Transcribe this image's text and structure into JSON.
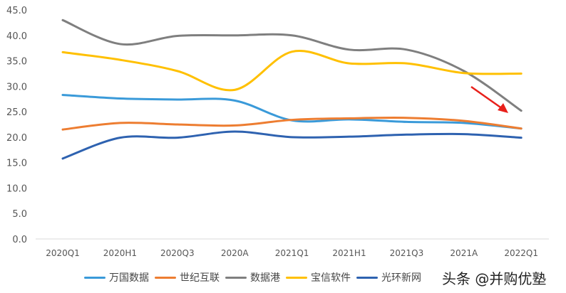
{
  "chart_data": {
    "type": "line",
    "categories": [
      "2020Q1",
      "2020H1",
      "2020Q3",
      "2020A",
      "2021Q1",
      "2021H1",
      "2021Q3",
      "2021A",
      "2022Q1"
    ],
    "ylim": [
      0,
      45
    ],
    "yticks": [
      "0.0",
      "5.0",
      "10.0",
      "15.0",
      "20.0",
      "25.0",
      "30.0",
      "35.0",
      "40.0",
      "45.0"
    ],
    "grid": false,
    "legend_position": "bottom",
    "smooth": true,
    "series": [
      {
        "name": "万国数据",
        "color": "#3a9ad9",
        "values": [
          28.3,
          27.6,
          27.4,
          27.2,
          23.3,
          23.5,
          23.0,
          22.8,
          21.7
        ]
      },
      {
        "name": "世纪互联",
        "color": "#ed7d31",
        "values": [
          21.5,
          22.8,
          22.5,
          22.3,
          23.4,
          23.7,
          23.8,
          23.2,
          21.7
        ]
      },
      {
        "name": "数据港",
        "color": "#7f7f7f",
        "values": [
          43.0,
          38.3,
          39.9,
          40.0,
          40.0,
          37.2,
          37.2,
          33.0,
          25.2
        ]
      },
      {
        "name": "宝信软件",
        "color": "#ffc000",
        "values": [
          36.7,
          35.2,
          33.0,
          29.3,
          36.8,
          34.5,
          34.5,
          32.6,
          32.5
        ]
      },
      {
        "name": "光环新网",
        "color": "#2e62b0",
        "values": [
          15.8,
          19.9,
          19.9,
          21.1,
          20.0,
          20.1,
          20.5,
          20.6,
          19.9
        ]
      }
    ],
    "annotation": {
      "type": "arrow",
      "color": "#e8201b"
    }
  },
  "watermark": "头条 @并购优塾"
}
